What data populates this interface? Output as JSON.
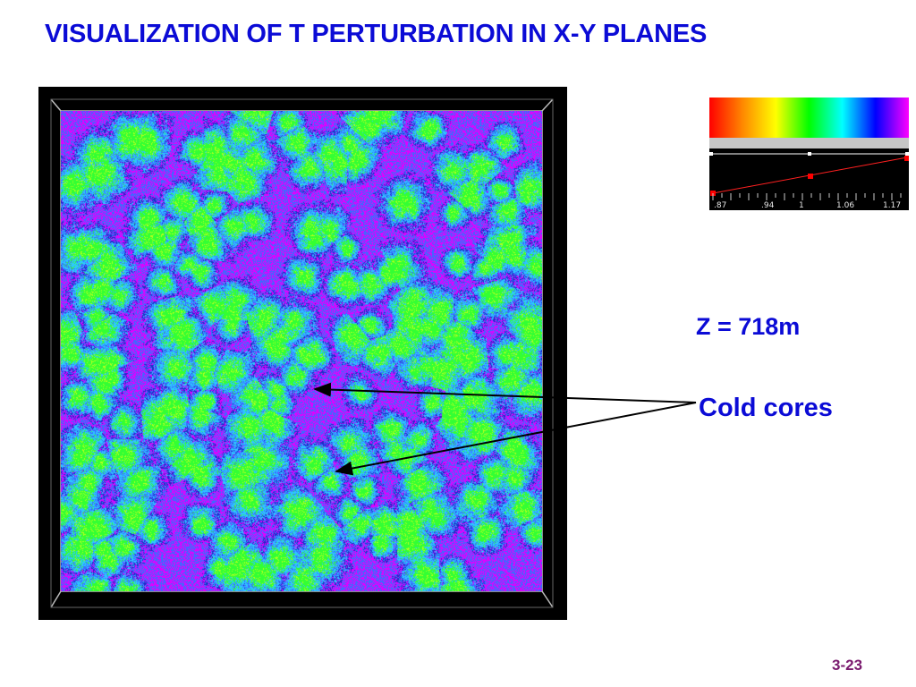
{
  "slide": {
    "title": "VISUALIZATION OF T PERTURBATION IN X-Y PLANES",
    "z_label": "Z = 718m",
    "annotation_label": "Cold cores",
    "slide_number": "3-23"
  },
  "colorbar": {
    "gradient_colors": [
      "#ff0000",
      "#ff8800",
      "#ffff00",
      "#00ff00",
      "#00ffff",
      "#0000ff",
      "#ff00ff"
    ],
    "tick_labels": [
      ".87",
      ".94",
      "1",
      "1.06",
      "1.17"
    ]
  },
  "colors": {
    "title_blue": "#0b0bd6",
    "slide_number_purple": "#7a1a6e",
    "field_palette": [
      "#2ec6ff",
      "#3a6cff",
      "#33ff33",
      "#b7ff1e",
      "#e000ff",
      "#1e2cc8"
    ]
  }
}
